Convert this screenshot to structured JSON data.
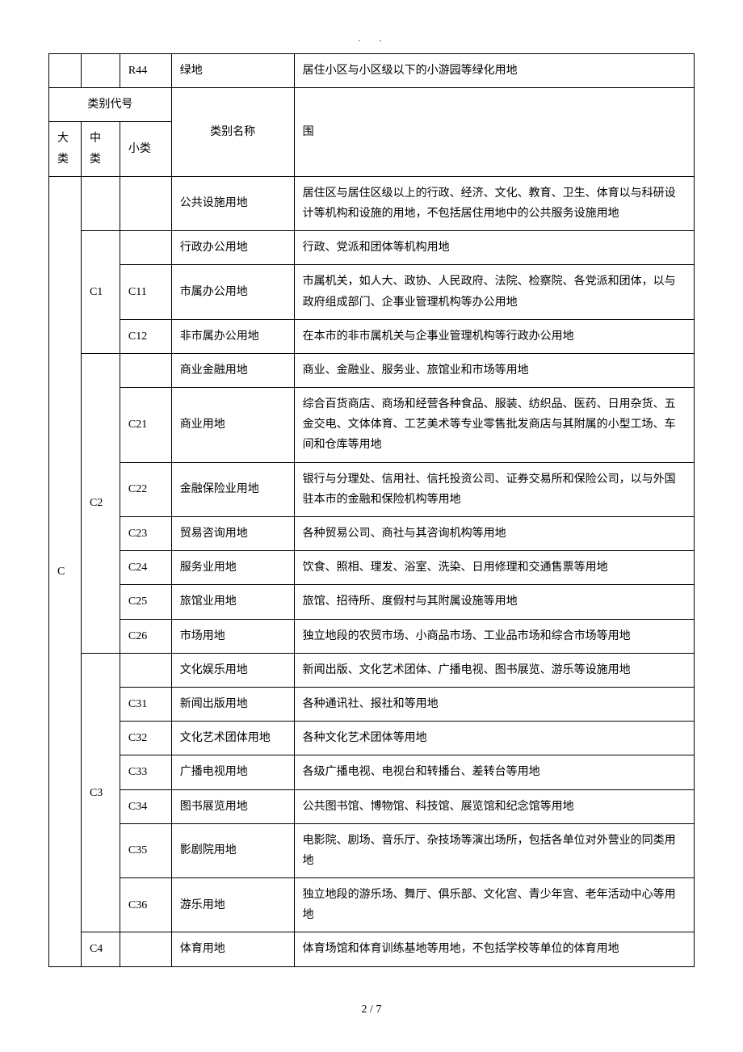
{
  "topRow": {
    "code": "R44",
    "name": "绿地",
    "fanwei": "居住小区与小区级以下的小游园等绿化用地"
  },
  "headers": {
    "leibieCode": "类别代号",
    "da": "大类",
    "zhong": "中类",
    "xiao": "小类",
    "leibieName": "类别名称",
    "fanwei": "围"
  },
  "daClass": "C",
  "rows": [
    {
      "zhong": "",
      "xiao": "",
      "name": "公共设施用地",
      "fanwei": "居住区与居住区级以上的行政、经济、文化、教育、卫生、体育以与科研设计等机构和设施的用地，不包括居住用地中的公共服务设施用地"
    },
    {
      "zhong": "C1",
      "zhongRowspan": 3,
      "xiao": "",
      "name": "行政办公用地",
      "fanwei": "行政、党派和团体等机构用地"
    },
    {
      "xiao": "C11",
      "name": "市属办公用地",
      "fanwei": "市属机关，如人大、政协、人民政府、法院、检察院、各党派和团体，以与政府组成部门、企事业管理机构等办公用地"
    },
    {
      "xiao": "C12",
      "name": "非市属办公用地",
      "fanwei": "在本市的非市属机关与企事业管理机构等行政办公用地"
    },
    {
      "zhong": "C2",
      "zhongRowspan": 7,
      "xiao": "",
      "name": "商业金融用地",
      "fanwei": "商业、金融业、服务业、旅馆业和市场等用地"
    },
    {
      "xiao": "C21",
      "name": "商业用地",
      "fanwei": "综合百货商店、商场和经营各种食品、服装、纺织品、医药、日用杂货、五金交电、文体体育、工艺美术等专业零售批发商店与其附属的小型工场、车间和仓库等用地"
    },
    {
      "xiao": "C22",
      "name": "金融保险业用地",
      "fanwei": "银行与分理处、信用社、信托投资公司、证券交易所和保险公司，以与外国驻本市的金融和保险机构等用地"
    },
    {
      "xiao": "C23",
      "name": "贸易咨询用地",
      "fanwei": "各种贸易公司、商社与其咨询机构等用地"
    },
    {
      "xiao": "C24",
      "name": "服务业用地",
      "fanwei": "饮食、照相、理发、浴室、洗染、日用修理和交通售票等用地"
    },
    {
      "xiao": "C25",
      "name": "旅馆业用地",
      "fanwei": "旅馆、招待所、度假村与其附属设施等用地"
    },
    {
      "xiao": "C26",
      "name": "市场用地",
      "fanwei": "独立地段的农贸市场、小商品市场、工业品市场和综合市场等用地"
    },
    {
      "zhong": "C3",
      "zhongRowspan": 7,
      "xiao": "",
      "name": "文化娱乐用地",
      "fanwei": "新闻出版、文化艺术团体、广播电视、图书展览、游乐等设施用地"
    },
    {
      "xiao": "C31",
      "name": "新闻出版用地",
      "fanwei": "各种通讯社、报社和等用地"
    },
    {
      "xiao": "C32",
      "name": "文化艺术团体用地",
      "fanwei": "各种文化艺术团体等用地"
    },
    {
      "xiao": "C33",
      "name": "广播电视用地",
      "fanwei": "各级广播电视、电视台和转播台、差转台等用地"
    },
    {
      "xiao": "C34",
      "name": "图书展览用地",
      "fanwei": "公共图书馆、博物馆、科技馆、展览馆和纪念馆等用地"
    },
    {
      "xiao": "C35",
      "name": "影剧院用地",
      "fanwei": "电影院、剧场、音乐厅、杂技场等演出场所，包括各单位对外营业的同类用地"
    },
    {
      "xiao": "C36",
      "name": "游乐用地",
      "fanwei": "独立地段的游乐场、舞厅、俱乐部、文化宫、青少年宫、老年活动中心等用地"
    },
    {
      "zhong": "C4",
      "zhongRowspan": 1,
      "xiao": "",
      "name": "体育用地",
      "fanwei": "体育场馆和体育训练基地等用地，不包括学校等单位的体育用地"
    }
  ],
  "page": {
    "current": "2",
    "total": "7"
  }
}
